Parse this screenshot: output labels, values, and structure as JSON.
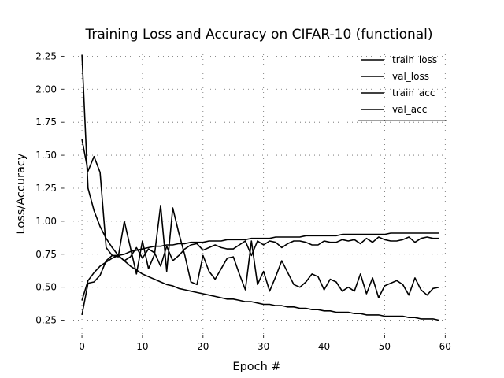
{
  "chart_data": {
    "type": "line",
    "title": "Training Loss and Accuracy on CIFAR-10 (functional)",
    "xlabel": "Epoch #",
    "ylabel": "Loss/Accuracy",
    "xlim": [
      -3,
      61
    ],
    "ylim": [
      0.14,
      2.3
    ],
    "xticks": [
      0,
      10,
      20,
      30,
      40,
      50,
      60
    ],
    "yticks": [
      0.25,
      0.5,
      0.75,
      1.0,
      1.25,
      1.5,
      1.75,
      2.0,
      2.25
    ],
    "ytick_labels": [
      "0.25",
      "0.50",
      "0.75",
      "1.00",
      "1.25",
      "1.50",
      "1.75",
      "2.00",
      "2.25"
    ],
    "grid": true,
    "legend_position": "upper right",
    "series": [
      {
        "name": "train_loss",
        "color": "#000000",
        "values": [
          2.26,
          1.25,
          1.08,
          0.96,
          0.87,
          0.8,
          0.74,
          0.7,
          0.66,
          0.63,
          0.6,
          0.58,
          0.56,
          0.54,
          0.52,
          0.51,
          0.49,
          0.48,
          0.47,
          0.46,
          0.45,
          0.44,
          0.43,
          0.42,
          0.41,
          0.41,
          0.4,
          0.39,
          0.39,
          0.38,
          0.37,
          0.37,
          0.36,
          0.36,
          0.35,
          0.35,
          0.34,
          0.34,
          0.33,
          0.33,
          0.32,
          0.32,
          0.31,
          0.31,
          0.31,
          0.3,
          0.3,
          0.29,
          0.29,
          0.29,
          0.28,
          0.28,
          0.28,
          0.28,
          0.27,
          0.27,
          0.26,
          0.26,
          0.26,
          0.25
        ]
      },
      {
        "name": "val_loss",
        "color": "#000000",
        "values": [
          1.62,
          1.38,
          1.49,
          1.37,
          0.8,
          0.74,
          0.73,
          1.0,
          0.8,
          0.6,
          0.85,
          0.64,
          0.75,
          1.12,
          0.62,
          1.1,
          0.91,
          0.74,
          0.54,
          0.52,
          0.74,
          0.62,
          0.56,
          0.64,
          0.72,
          0.73,
          0.6,
          0.48,
          0.85,
          0.52,
          0.62,
          0.47,
          0.58,
          0.7,
          0.61,
          0.52,
          0.5,
          0.54,
          0.6,
          0.58,
          0.48,
          0.56,
          0.54,
          0.47,
          0.5,
          0.47,
          0.6,
          0.45,
          0.57,
          0.42,
          0.51,
          0.53,
          0.55,
          0.52,
          0.44,
          0.57,
          0.48,
          0.44,
          0.49,
          0.5
        ]
      },
      {
        "name": "train_acc",
        "color": "#000000",
        "values": [
          0.4,
          0.55,
          0.61,
          0.66,
          0.69,
          0.72,
          0.74,
          0.75,
          0.77,
          0.78,
          0.79,
          0.8,
          0.81,
          0.81,
          0.82,
          0.82,
          0.83,
          0.83,
          0.84,
          0.84,
          0.84,
          0.85,
          0.85,
          0.85,
          0.86,
          0.86,
          0.86,
          0.86,
          0.87,
          0.87,
          0.87,
          0.87,
          0.88,
          0.88,
          0.88,
          0.88,
          0.88,
          0.89,
          0.89,
          0.89,
          0.89,
          0.89,
          0.89,
          0.9,
          0.9,
          0.9,
          0.9,
          0.9,
          0.9,
          0.9,
          0.9,
          0.91,
          0.91,
          0.91,
          0.91,
          0.91,
          0.91,
          0.91,
          0.91,
          0.91
        ]
      },
      {
        "name": "val_acc",
        "color": "#000000",
        "values": [
          0.29,
          0.53,
          0.54,
          0.59,
          0.7,
          0.74,
          0.74,
          0.7,
          0.73,
          0.8,
          0.72,
          0.79,
          0.76,
          0.66,
          0.81,
          0.7,
          0.74,
          0.79,
          0.82,
          0.83,
          0.78,
          0.8,
          0.82,
          0.8,
          0.79,
          0.79,
          0.82,
          0.85,
          0.74,
          0.85,
          0.82,
          0.85,
          0.84,
          0.8,
          0.83,
          0.85,
          0.85,
          0.84,
          0.82,
          0.82,
          0.85,
          0.84,
          0.84,
          0.86,
          0.85,
          0.86,
          0.83,
          0.87,
          0.84,
          0.88,
          0.86,
          0.85,
          0.85,
          0.86,
          0.88,
          0.84,
          0.87,
          0.88,
          0.87,
          0.87
        ]
      }
    ]
  }
}
